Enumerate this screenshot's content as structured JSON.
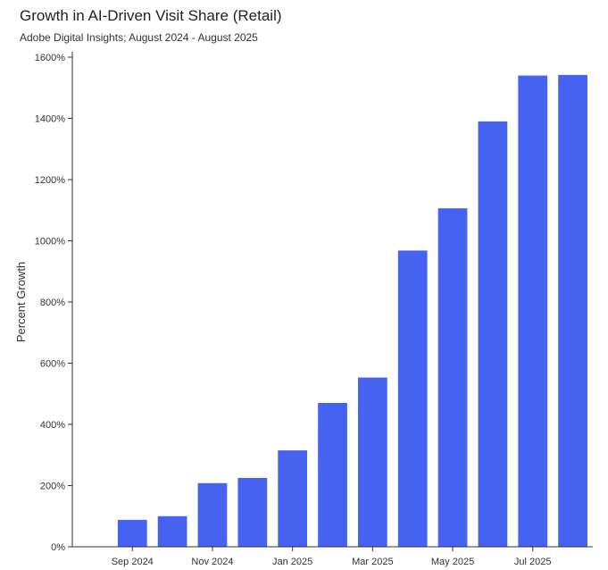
{
  "chart_data": {
    "type": "bar",
    "title": "Growth in AI-Driven Visit Share (Retail)",
    "subtitle": "Adobe Digital Insights; August 2024 - August 2025",
    "xlabel": "",
    "ylabel": "Percent Growth",
    "ylim": [
      0,
      1600
    ],
    "yticks": [
      0,
      200,
      400,
      600,
      800,
      1000,
      1200,
      1400,
      1600
    ],
    "ytick_labels": [
      "0%",
      "200%",
      "400%",
      "600%",
      "800%",
      "1000%",
      "1200%",
      "1400%",
      "1600%"
    ],
    "categories": [
      "Aug 2024",
      "Sep 2024",
      "Oct 2024",
      "Nov 2024",
      "Dec 2024",
      "Jan 2025",
      "Feb 2025",
      "Mar 2025",
      "Apr 2025",
      "May 2025",
      "Jun 2025",
      "Jul 2025",
      "Aug 2025"
    ],
    "x_tick_labels": [
      {
        "category": "Sep 2024",
        "label": "Sep 2024"
      },
      {
        "category": "Nov 2024",
        "label": "Nov 2024"
      },
      {
        "category": "Jan 2025",
        "label": "Jan 2025"
      },
      {
        "category": "Mar 2025",
        "label": "Mar 2025"
      },
      {
        "category": "May 2025",
        "label": "May 2025"
      },
      {
        "category": "Jul 2025",
        "label": "Jul 2025"
      }
    ],
    "values": [
      0,
      88,
      100,
      208,
      225,
      315,
      470,
      553,
      968,
      1106,
      1390,
      1540,
      1542
    ],
    "bar_color": "#4562f0",
    "grid": false,
    "legend": "none"
  }
}
